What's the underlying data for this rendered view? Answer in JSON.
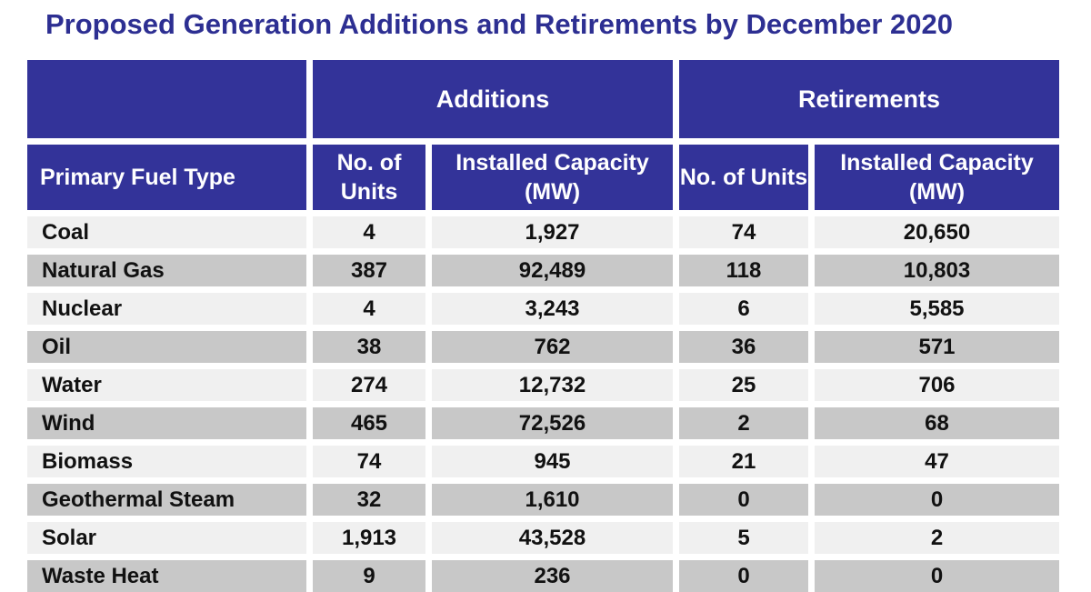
{
  "title": "Proposed Generation Additions and Retirements by December 2020",
  "colors": {
    "header_bg": "#333399",
    "row_light": "#F0F0F0",
    "row_dark": "#C8C8C8",
    "title_text": "#2D2F92",
    "cell_text": "#111111",
    "header_text": "#FFFFFF"
  },
  "chart_data": {
    "type": "table",
    "title": "Proposed Generation Additions and Retirements by December 2020",
    "column_groups": {
      "additions": "Additions",
      "retirements": "Retirements"
    },
    "columns": {
      "fuel": "Primary Fuel Type",
      "units": "No. of Units",
      "capacity": "Installed Capacity (MW)"
    },
    "rows": [
      {
        "fuel": "Coal",
        "additions_units": "4",
        "additions_mw": "1,927",
        "retirements_units": "74",
        "retirements_mw": "20,650"
      },
      {
        "fuel": "Natural Gas",
        "additions_units": "387",
        "additions_mw": "92,489",
        "retirements_units": "118",
        "retirements_mw": "10,803"
      },
      {
        "fuel": "Nuclear",
        "additions_units": "4",
        "additions_mw": "3,243",
        "retirements_units": "6",
        "retirements_mw": "5,585"
      },
      {
        "fuel": "Oil",
        "additions_units": "38",
        "additions_mw": "762",
        "retirements_units": "36",
        "retirements_mw": "571"
      },
      {
        "fuel": "Water",
        "additions_units": "274",
        "additions_mw": "12,732",
        "retirements_units": "25",
        "retirements_mw": "706"
      },
      {
        "fuel": "Wind",
        "additions_units": "465",
        "additions_mw": "72,526",
        "retirements_units": "2",
        "retirements_mw": "68"
      },
      {
        "fuel": "Biomass",
        "additions_units": "74",
        "additions_mw": "945",
        "retirements_units": "21",
        "retirements_mw": "47"
      },
      {
        "fuel": "Geothermal Steam",
        "additions_units": "32",
        "additions_mw": "1,610",
        "retirements_units": "0",
        "retirements_mw": "0"
      },
      {
        "fuel": "Solar",
        "additions_units": "1,913",
        "additions_mw": "43,528",
        "retirements_units": "5",
        "retirements_mw": "2"
      },
      {
        "fuel": "Waste Heat",
        "additions_units": "9",
        "additions_mw": "236",
        "retirements_units": "0",
        "retirements_mw": "0"
      }
    ]
  }
}
